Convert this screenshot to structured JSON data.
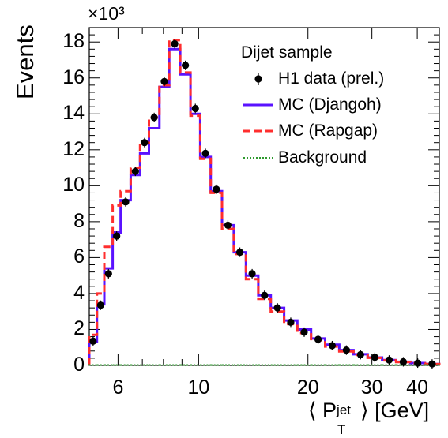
{
  "chart_data": {
    "type": "line",
    "ylabel": "Events",
    "y_multiplier": "×10³",
    "x_scale": "log",
    "xlim": [
      5.0,
      46.0
    ],
    "ylim": [
      0,
      18.8
    ],
    "x_tick_labels": [
      "6",
      "10",
      "20",
      "30",
      "40"
    ],
    "x_tick_values": [
      6,
      10,
      20,
      30,
      40
    ],
    "y_tick_labels": [
      "0",
      "2",
      "4",
      "6",
      "8",
      "10",
      "12",
      "14",
      "16",
      "18"
    ],
    "y_tick_values": [
      0,
      2,
      4,
      6,
      8,
      10,
      12,
      14,
      16,
      18
    ],
    "bin_edges": [
      5.0,
      5.25,
      5.5,
      5.8,
      6.1,
      6.5,
      6.9,
      7.3,
      7.8,
      8.3,
      8.9,
      9.5,
      10.1,
      10.8,
      11.6,
      12.5,
      13.5,
      14.6,
      15.8,
      17.2,
      18.7,
      20.4,
      22.3,
      24.4,
      26.7,
      29.2,
      32.0,
      35.0,
      38.3,
      42.0,
      46.0
    ],
    "series": [
      {
        "name": "H1 data (prel.)",
        "style": "markers",
        "values": [
          1.35,
          3.35,
          5.1,
          7.2,
          9.1,
          10.8,
          12.4,
          13.8,
          15.8,
          17.9,
          16.7,
          14.3,
          11.8,
          9.8,
          7.8,
          6.3,
          5.1,
          3.9,
          3.2,
          2.4,
          1.85,
          1.45,
          1.1,
          0.85,
          0.6,
          0.45,
          0.3,
          0.2,
          0.13,
          0.08
        ]
      },
      {
        "name": "MC (Djangoh)",
        "style": "solid",
        "color": "#5a12ff",
        "values": [
          1.3,
          3.4,
          5.4,
          7.4,
          9.2,
          10.6,
          11.8,
          13.2,
          15.5,
          17.6,
          16.2,
          14.0,
          11.6,
          9.7,
          7.8,
          6.3,
          5.0,
          3.9,
          3.2,
          2.5,
          2.0,
          1.5,
          1.15,
          0.85,
          0.62,
          0.44,
          0.3,
          0.2,
          0.13,
          0.08
        ]
      },
      {
        "name": "MC (Rapgap)",
        "style": "dashed",
        "color": "#ff2e2e",
        "values": [
          1.7,
          4.0,
          6.6,
          8.9,
          9.7,
          11.0,
          12.4,
          13.8,
          15.6,
          18.1,
          16.3,
          13.9,
          11.5,
          9.6,
          7.6,
          6.2,
          4.8,
          3.7,
          3.0,
          2.3,
          1.8,
          1.4,
          1.05,
          0.78,
          0.58,
          0.42,
          0.28,
          0.19,
          0.12,
          0.07
        ]
      },
      {
        "name": "Background",
        "style": "dotted",
        "color": "#2e9a2e",
        "values": [
          0.02,
          0.02,
          0.02,
          0.02,
          0.02,
          0.02,
          0.02,
          0.02,
          0.02,
          0.02,
          0.02,
          0.02,
          0.02,
          0.02,
          0.02,
          0.02,
          0.02,
          0.02,
          0.02,
          0.02,
          0.02,
          0.02,
          0.02,
          0.02,
          0.02,
          0.02,
          0.02,
          0.02,
          0.02,
          0.02
        ]
      }
    ],
    "legend": {
      "placement": "top-right",
      "header": "Dijet sample",
      "entries": [
        "H1 data (prel.)",
        "MC (Djangoh)",
        "MC (Rapgap)",
        "Background"
      ]
    }
  }
}
